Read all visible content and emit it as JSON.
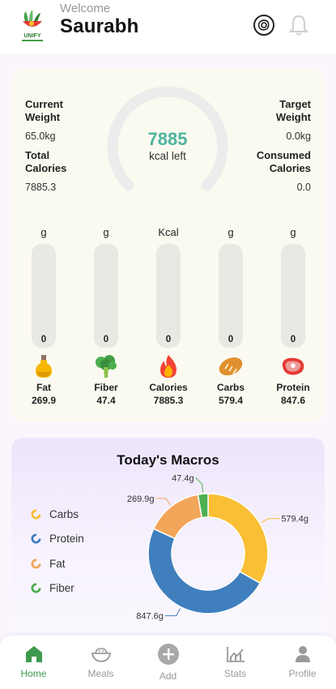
{
  "header": {
    "welcome": "Welcome",
    "username": "Saurabh",
    "logo_text": "UNIFY",
    "icons": [
      "ai-assistant-icon",
      "bell-icon"
    ]
  },
  "summary": {
    "current_weight_label_1": "Current",
    "current_weight_label_2": "Weight",
    "current_weight_value": "65.0kg",
    "total_calories_label_1": "Total",
    "total_calories_label_2": "Calories",
    "total_calories_value": "7885.3",
    "target_weight_label_1": "Target",
    "target_weight_label_2": "Weight",
    "target_weight_value": "0.0kg",
    "consumed_calories_label_1": "Consumed",
    "consumed_calories_label_2": "Calories",
    "consumed_calories_value": "0.0",
    "kcal_left_value": "7885",
    "kcal_left_label": "kcal left",
    "gauge_progress": 0.0
  },
  "macros_bars": [
    {
      "unit": "g",
      "current": "0",
      "name": "Fat",
      "value": "269.9",
      "fill": 0.0,
      "icon": "oil-bottle-icon"
    },
    {
      "unit": "g",
      "current": "0",
      "name": "Fiber",
      "value": "47.4",
      "fill": 0.0,
      "icon": "broccoli-icon"
    },
    {
      "unit": "Kcal",
      "current": "0",
      "name": "Calories",
      "value": "7885.3",
      "fill": 0.0,
      "icon": "fire-icon"
    },
    {
      "unit": "g",
      "current": "0",
      "name": "Carbs",
      "value": "579.4",
      "fill": 0.0,
      "icon": "bread-icon"
    },
    {
      "unit": "g",
      "current": "0",
      "name": "Protein",
      "value": "847.6",
      "fill": 0.0,
      "icon": "steak-icon"
    }
  ],
  "todays_macros": {
    "title": "Today's Macros",
    "legend": [
      {
        "label": "Carbs",
        "color": "#f9bf35"
      },
      {
        "label": "Protein",
        "color": "#3f7fbd"
      },
      {
        "label": "Fat",
        "color": "#f2a65a"
      },
      {
        "label": "Fiber",
        "color": "#4caf50"
      }
    ],
    "slices": [
      {
        "name": "Carbs",
        "value": 579.4,
        "label": "579.4g",
        "color": "#f9bf35"
      },
      {
        "name": "Protein",
        "value": 847.6,
        "label": "847.6g",
        "color": "#3f7fbd"
      },
      {
        "name": "Fat",
        "value": 269.9,
        "label": "269.9g",
        "color": "#f2a65a"
      },
      {
        "name": "Fiber",
        "value": 47.4,
        "label": "47.4g",
        "color": "#4caf50"
      }
    ]
  },
  "nav": [
    {
      "label": "Home",
      "icon": "home-icon",
      "active": true
    },
    {
      "label": "Meals",
      "icon": "meals-bowl-icon",
      "active": false
    },
    {
      "label": "Add",
      "icon": "add-icon",
      "active": false
    },
    {
      "label": "Stats",
      "icon": "stats-chart-icon",
      "active": false
    },
    {
      "label": "Profile",
      "icon": "profile-icon",
      "active": false
    }
  ],
  "colors": {
    "accent": "#4eb3a1",
    "nav_active": "#3f9a4f",
    "nav_inactive": "#9a9a9a"
  }
}
